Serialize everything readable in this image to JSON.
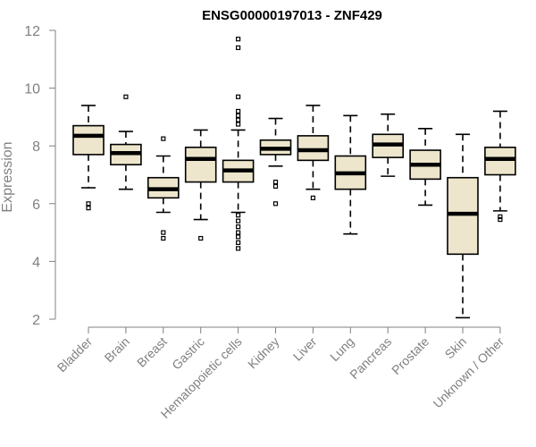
{
  "chart_data": {
    "type": "boxplot",
    "title": "ENSG00000197013 - ZNF429",
    "ylabel": "Expression",
    "xlabel": "",
    "ylim": [
      2,
      12
    ],
    "yticks": [
      2,
      4,
      6,
      8,
      10,
      12
    ],
    "box_fill": "#ede6cc",
    "categories": [
      "Bladder",
      "Brain",
      "Breast",
      "Gastric",
      "Hematopoietic cells",
      "Kidney",
      "Liver",
      "Lung",
      "Pancreas",
      "Prostate",
      "Skin",
      "Unknown / Other"
    ],
    "boxes": [
      {
        "name": "Bladder",
        "whislo": 6.55,
        "q1": 7.7,
        "med": 8.35,
        "q3": 8.7,
        "whishi": 9.4,
        "fliers": [
          5.85,
          6.0
        ]
      },
      {
        "name": "Brain",
        "whislo": 6.5,
        "q1": 7.35,
        "med": 7.75,
        "q3": 8.05,
        "whishi": 8.5,
        "fliers": [
          9.7
        ]
      },
      {
        "name": "Breast",
        "whislo": 5.7,
        "q1": 6.2,
        "med": 6.5,
        "q3": 6.9,
        "whishi": 7.65,
        "fliers": [
          8.25,
          5.0,
          4.8
        ]
      },
      {
        "name": "Gastric",
        "whislo": 5.45,
        "q1": 6.75,
        "med": 7.55,
        "q3": 7.95,
        "whishi": 8.55,
        "fliers": [
          4.8
        ]
      },
      {
        "name": "Hematopoietic cells",
        "whislo": 5.7,
        "q1": 6.75,
        "med": 7.15,
        "q3": 7.5,
        "whishi": 8.55,
        "fliers": [
          11.7,
          11.4,
          9.7,
          9.2,
          9.05,
          8.9,
          8.75,
          5.6,
          5.4,
          5.2,
          5.0,
          4.85,
          4.65,
          4.45
        ]
      },
      {
        "name": "Kidney",
        "whislo": 7.3,
        "q1": 7.7,
        "med": 7.9,
        "q3": 8.2,
        "whishi": 8.95,
        "fliers": [
          6.75,
          6.6,
          6.0
        ]
      },
      {
        "name": "Liver",
        "whislo": 6.5,
        "q1": 7.5,
        "med": 7.85,
        "q3": 8.35,
        "whishi": 9.4,
        "fliers": [
          6.2
        ]
      },
      {
        "name": "Lung",
        "whislo": 4.95,
        "q1": 6.5,
        "med": 7.05,
        "q3": 7.65,
        "whishi": 9.05,
        "fliers": []
      },
      {
        "name": "Pancreas",
        "whislo": 6.95,
        "q1": 7.6,
        "med": 8.05,
        "q3": 8.4,
        "whishi": 9.1,
        "fliers": []
      },
      {
        "name": "Prostate",
        "whislo": 5.95,
        "q1": 6.85,
        "med": 7.35,
        "q3": 7.85,
        "whishi": 8.6,
        "fliers": []
      },
      {
        "name": "Skin",
        "whislo": 2.05,
        "q1": 4.25,
        "med": 5.65,
        "q3": 6.9,
        "whishi": 8.4,
        "fliers": []
      },
      {
        "name": "Unknown / Other",
        "whislo": 5.75,
        "q1": 7.0,
        "med": 7.55,
        "q3": 7.95,
        "whishi": 9.2,
        "fliers": [
          5.55,
          5.45
        ]
      }
    ]
  }
}
